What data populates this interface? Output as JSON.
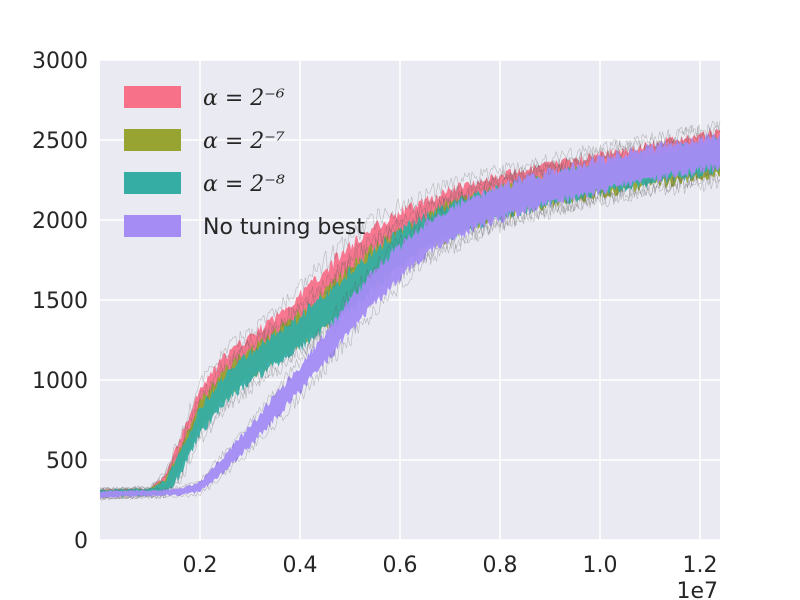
{
  "chart_data": {
    "type": "area",
    "xlim": [
      0,
      12400000
    ],
    "ylim": [
      0,
      3000
    ],
    "x_ticks": [
      2000000,
      4000000,
      6000000,
      8000000,
      10000000,
      12000000
    ],
    "x_tick_labels": [
      "0.2",
      "0.4",
      "0.6",
      "0.8",
      "1.0",
      "1.2"
    ],
    "x_offset_label": "1e7",
    "y_ticks": [
      0,
      500,
      1000,
      1500,
      2000,
      2500,
      3000
    ],
    "y_tick_labels": [
      "0",
      "500",
      "1000",
      "1500",
      "2000",
      "2500",
      "3000"
    ],
    "grid": true,
    "legend_position": "top-left",
    "background": "#eaeaf2",
    "x": [
      0,
      500000,
      1000000,
      1300000,
      1600000,
      2000000,
      2500000,
      3000000,
      3500000,
      4000000,
      4500000,
      5000000,
      5500000,
      6000000,
      6500000,
      7000000,
      7500000,
      8000000,
      8500000,
      9000000,
      9500000,
      10000000,
      10500000,
      11000000,
      11500000,
      12000000,
      12400000
    ],
    "series": [
      {
        "name": "α = 2⁻⁶",
        "color": "#f77189",
        "mean": [
          290,
          295,
          300,
          360,
          560,
          860,
          1060,
          1180,
          1300,
          1430,
          1570,
          1720,
          1850,
          1950,
          2030,
          2100,
          2160,
          2200,
          2230,
          2270,
          2300,
          2330,
          2360,
          2390,
          2420,
          2450,
          2470
        ],
        "upper": [
          310,
          315,
          320,
          400,
          630,
          940,
          1150,
          1270,
          1390,
          1530,
          1690,
          1840,
          1960,
          2050,
          2120,
          2190,
          2240,
          2280,
          2310,
          2350,
          2380,
          2410,
          2440,
          2470,
          2500,
          2530,
          2550
        ],
        "lower": [
          270,
          275,
          280,
          320,
          490,
          780,
          970,
          1090,
          1210,
          1330,
          1450,
          1600,
          1740,
          1850,
          1940,
          2010,
          2080,
          2120,
          2150,
          2190,
          2220,
          2250,
          2280,
          2310,
          2340,
          2370,
          2390
        ]
      },
      {
        "name": "α = 2⁻⁷",
        "color": "#97a431",
        "mean": [
          290,
          295,
          300,
          340,
          500,
          780,
          980,
          1100,
          1210,
          1320,
          1440,
          1580,
          1710,
          1830,
          1920,
          2000,
          2060,
          2110,
          2150,
          2190,
          2220,
          2250,
          2280,
          2310,
          2330,
          2350,
          2370
        ],
        "upper": [
          310,
          315,
          320,
          380,
          570,
          860,
          1070,
          1190,
          1300,
          1420,
          1550,
          1700,
          1830,
          1940,
          2020,
          2100,
          2150,
          2200,
          2240,
          2280,
          2310,
          2340,
          2370,
          2400,
          2420,
          2440,
          2460
        ],
        "lower": [
          270,
          275,
          280,
          300,
          430,
          700,
          890,
          1010,
          1120,
          1220,
          1330,
          1460,
          1590,
          1720,
          1820,
          1900,
          1970,
          2020,
          2060,
          2100,
          2130,
          2160,
          2190,
          2220,
          2240,
          2260,
          2280
        ]
      },
      {
        "name": "α = 2⁻⁸",
        "color": "#36ada4",
        "mean": [
          290,
          295,
          300,
          330,
          470,
          740,
          950,
          1080,
          1190,
          1300,
          1420,
          1560,
          1700,
          1820,
          1920,
          2000,
          2060,
          2110,
          2150,
          2190,
          2230,
          2260,
          2290,
          2320,
          2350,
          2380,
          2400
        ],
        "upper": [
          310,
          315,
          320,
          370,
          540,
          820,
          1040,
          1170,
          1280,
          1400,
          1530,
          1680,
          1820,
          1930,
          2020,
          2100,
          2160,
          2200,
          2240,
          2280,
          2320,
          2350,
          2380,
          2410,
          2440,
          2470,
          2490
        ],
        "lower": [
          270,
          275,
          280,
          290,
          400,
          660,
          860,
          990,
          1100,
          1200,
          1310,
          1440,
          1580,
          1710,
          1820,
          1900,
          1960,
          2020,
          2060,
          2100,
          2140,
          2170,
          2200,
          2230,
          2260,
          2290,
          2310
        ]
      },
      {
        "name": "No tuning best",
        "color": "#a48cf4",
        "mean": [
          285,
          290,
          292,
          295,
          300,
          330,
          480,
          650,
          830,
          1010,
          1200,
          1400,
          1580,
          1740,
          1870,
          1970,
          2050,
          2110,
          2160,
          2200,
          2240,
          2280,
          2320,
          2350,
          2380,
          2410,
          2430
        ],
        "upper": [
          305,
          308,
          310,
          312,
          320,
          360,
          530,
          710,
          900,
          1090,
          1290,
          1500,
          1680,
          1840,
          1970,
          2070,
          2150,
          2210,
          2260,
          2300,
          2340,
          2380,
          2420,
          2450,
          2480,
          2510,
          2530
        ],
        "lower": [
          265,
          272,
          274,
          278,
          280,
          300,
          430,
          590,
          760,
          930,
          1110,
          1300,
          1480,
          1640,
          1770,
          1870,
          1950,
          2010,
          2060,
          2100,
          2140,
          2180,
          2220,
          2250,
          2280,
          2310,
          2330
        ]
      }
    ],
    "legend": [
      {
        "label": "α = 2⁻⁶",
        "color": "#f77189"
      },
      {
        "label": "α = 2⁻⁷",
        "color": "#97a431"
      },
      {
        "label": "α = 2⁻⁸",
        "color": "#36ada4"
      },
      {
        "label": "No tuning best",
        "color": "#a48cf4"
      }
    ]
  }
}
